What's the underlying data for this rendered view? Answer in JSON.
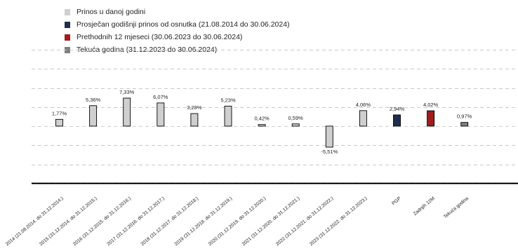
{
  "chart_data": {
    "type": "bar",
    "legend": [
      {
        "label": "Prinos u danoj godini",
        "color": "#d0cece"
      },
      {
        "label": "Prosječan godišnji prinos od osnutka (21.08.2014 do 30.06.2024)",
        "color": "#1f2d4e"
      },
      {
        "label": "Prethodnih 12 mjeseci (30.06.2023 do 30.06.2024)",
        "color": "#a11d1d"
      },
      {
        "label": "Tekuća godina (31.12.2023 do 30.06.2024)",
        "color": "#7f7f7f"
      }
    ],
    "categories": [
      "2014 (21.08.2014. do 31.12.2014.)",
      "2015 (31.12.2014. do 31.12.2015.)",
      "2016 (31.12.2015. do 31.12.2016.)",
      "2017 (31.12.2016. do 31.12.2017.)",
      "2018 (31.12.2017. do 31.12.2018.)",
      "2019 (31.12.2018. do 31.12.2019.)",
      "2020 (31.12.2019. do 31.12.2020.)",
      "2021 (31.12.2020. do 31.12.2021.)",
      "2022 (31.12.2021. do 31.12.2022.)",
      "2023 (31.12.2022. do 31.12.2023.)",
      "PGP",
      "Zadnjih 12M",
      "Tekuća godina"
    ],
    "values": [
      1.77,
      5.36,
      7.33,
      6.07,
      3.28,
      5.23,
      0.42,
      0.59,
      -5.51,
      4.06,
      2.94,
      4.02,
      0.97
    ],
    "value_labels": [
      "1,77%",
      "5,36%",
      "7,33%",
      "6,07%",
      "3,28%",
      "5,23%",
      "0,42%",
      "0,59%",
      "-5,51%",
      "4,06%",
      "2,94%",
      "4,02%",
      "0,97%"
    ],
    "bar_series": [
      0,
      0,
      0,
      0,
      0,
      0,
      0,
      0,
      0,
      0,
      1,
      2,
      3
    ],
    "ylim": [
      -15,
      20
    ],
    "gridlines": [
      -15,
      -10,
      -5,
      5,
      10,
      15,
      20
    ],
    "grid": true,
    "title": "",
    "xlabel": "",
    "ylabel": ""
  }
}
